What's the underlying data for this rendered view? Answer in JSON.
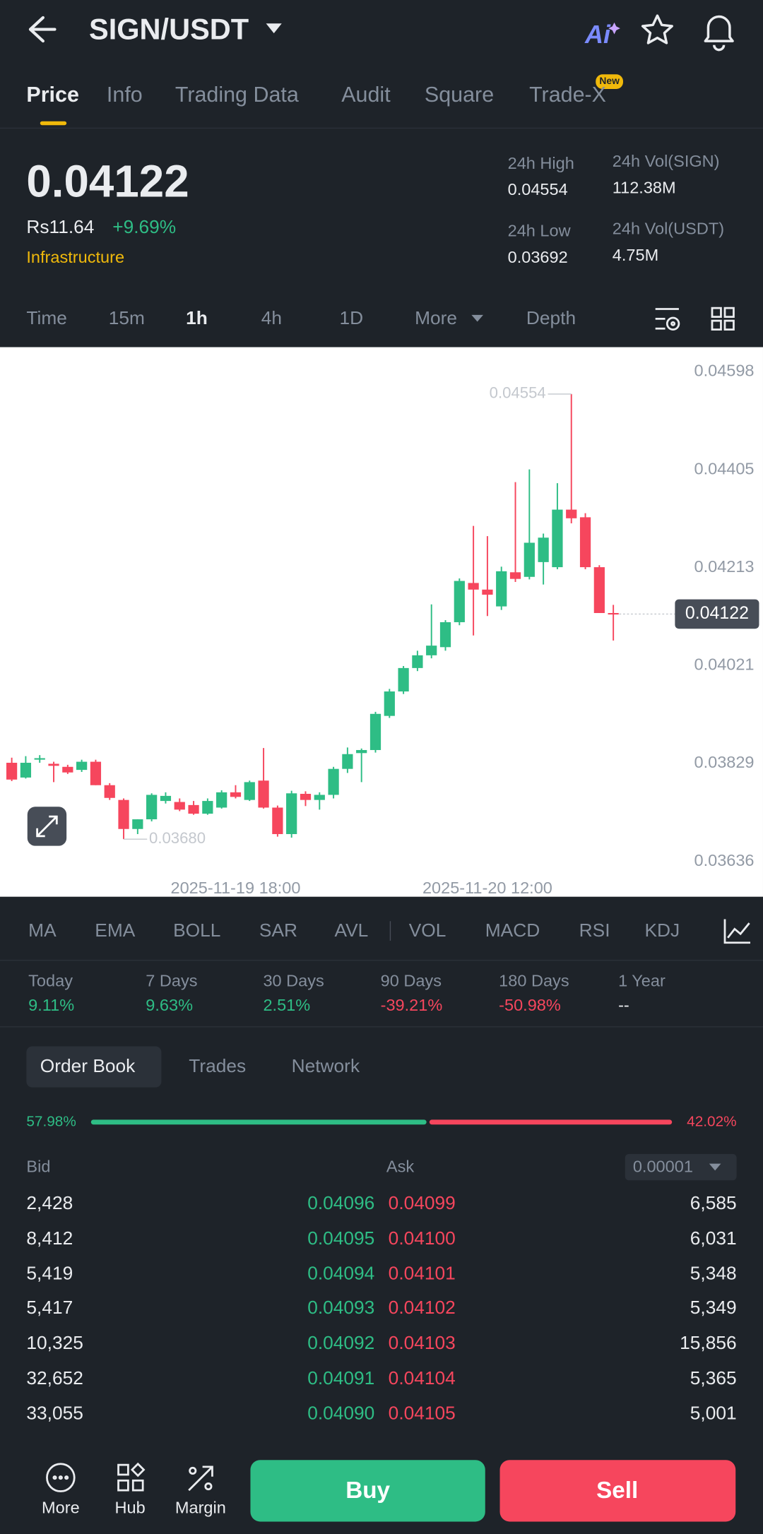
{
  "header": {
    "pair": "SIGN/USDT",
    "ai_label": "Ai"
  },
  "tabs": [
    "Price",
    "Info",
    "Trading Data",
    "Audit",
    "Square",
    "Trade-X"
  ],
  "new_badge": "New",
  "price": {
    "last": "0.04122",
    "fiat": "Rs11.64",
    "change": "+9.69%",
    "sector": "Infrastructure"
  },
  "stats": [
    {
      "label": "24h High",
      "value": "0.04554"
    },
    {
      "label": "24h Vol(SIGN)",
      "value": "112.38M"
    },
    {
      "label": "24h Low",
      "value": "0.03692"
    },
    {
      "label": "24h Vol(USDT)",
      "value": "4.75M"
    }
  ],
  "intervals": [
    "Time",
    "15m",
    "1h",
    "4h",
    "1D",
    "More",
    "Depth"
  ],
  "chart_data": {
    "type": "candlestick",
    "categories": [
      null,
      null,
      null,
      null,
      null,
      null,
      null,
      null,
      null,
      null,
      null,
      null,
      null,
      null,
      null,
      null,
      "2025-11-19 18:00",
      null,
      null,
      null,
      null,
      null,
      null,
      null,
      null,
      null,
      null,
      null,
      null,
      null,
      null,
      null,
      null,
      null,
      "2025-11-20 12:00",
      null,
      null,
      null,
      null,
      null,
      null,
      null,
      null,
      null
    ],
    "open": [
      0.0383,
      0.03801,
      0.03838,
      0.03828,
      0.03822,
      0.03816,
      0.03832,
      0.03786,
      0.03757,
      0.037,
      0.03719,
      0.03755,
      0.03753,
      0.03747,
      0.0373,
      0.03742,
      0.03772,
      0.03757,
      0.03795,
      0.03742,
      0.0369,
      0.03769,
      0.03757,
      0.03767,
      0.03818,
      0.03849,
      0.03855,
      0.03922,
      0.0397,
      0.04016,
      0.04041,
      0.04057,
      0.04106,
      0.04183,
      0.0417,
      0.04137,
      0.04204,
      0.04195,
      0.04224,
      0.04214,
      0.04327,
      0.04312,
      0.04214,
      0.04124
    ],
    "high": [
      0.0384,
      0.03843,
      0.03845,
      0.03832,
      0.03826,
      0.03836,
      0.03836,
      0.0379,
      0.0376,
      0.03719,
      0.0377,
      0.03772,
      0.0376,
      0.03755,
      0.0376,
      0.03776,
      0.03786,
      0.03795,
      0.03859,
      0.03746,
      0.03775,
      0.03774,
      0.03772,
      0.03822,
      0.0386,
      0.03858,
      0.0393,
      0.03975,
      0.0402,
      0.0405,
      0.04141,
      0.0411,
      0.04192,
      0.04295,
      0.04275,
      0.04215,
      0.04381,
      0.04406,
      0.0428,
      0.04379,
      0.04554,
      0.0432,
      0.04218,
      0.0414
    ],
    "low": [
      0.03794,
      0.03799,
      0.0383,
      0.03792,
      0.03808,
      0.03812,
      0.03786,
      0.03757,
      0.0368,
      0.0369,
      0.03715,
      0.0375,
      0.03735,
      0.03728,
      0.03728,
      0.0374,
      0.0376,
      0.03755,
      0.0374,
      0.03685,
      0.03683,
      0.03745,
      0.03738,
      0.0376,
      0.0381,
      0.03792,
      0.0385,
      0.03918,
      0.03965,
      0.0401,
      0.04035,
      0.0405,
      0.041,
      0.0408,
      0.04118,
      0.0413,
      0.04185,
      0.0419,
      0.0418,
      0.0421,
      0.043,
      0.0421,
      0.04124,
      0.0407
    ],
    "close": [
      0.03797,
      0.0383,
      0.03839,
      0.03824,
      0.03811,
      0.03832,
      0.03786,
      0.03761,
      0.037,
      0.03719,
      0.03767,
      0.03765,
      0.03738,
      0.0373,
      0.03755,
      0.03772,
      0.03763,
      0.03792,
      0.03742,
      0.0369,
      0.0377,
      0.03757,
      0.03767,
      0.03818,
      0.03847,
      0.03855,
      0.03926,
      0.0397,
      0.04016,
      0.04041,
      0.0406,
      0.04106,
      0.04187,
      0.0417,
      0.0416,
      0.04206,
      0.04191,
      0.04262,
      0.04272,
      0.04327,
      0.0431,
      0.04214,
      0.04124,
      0.04122
    ],
    "up_color": "#2ebd85",
    "down_color": "#f6465d",
    "ylim": [
      0.03567,
      0.04646
    ],
    "yticks": [
      0.04598,
      0.04405,
      0.04213,
      0.04021,
      0.03829,
      0.03636
    ],
    "high_label": {
      "value": 0.04554,
      "label": "0.04554"
    },
    "low_label": {
      "value": 0.0368,
      "label": "0.03680"
    },
    "last_price": {
      "value": 0.04122,
      "label": "0.04122"
    }
  },
  "indicators": [
    "MA",
    "EMA",
    "BOLL",
    "SAR",
    "AVL",
    "VOL",
    "MACD",
    "RSI",
    "KDJ"
  ],
  "performance": [
    {
      "label": "Today",
      "value": "9.11%"
    },
    {
      "label": "7 Days",
      "value": "9.63%"
    },
    {
      "label": "30 Days",
      "value": "2.51%"
    },
    {
      "label": "90 Days",
      "value": "-39.21%"
    },
    {
      "label": "180 Days",
      "value": "-50.98%"
    },
    {
      "label": "1 Year",
      "value": "--"
    }
  ],
  "order_book": {
    "tabs": [
      "Order Book",
      "Trades",
      "Network"
    ],
    "bid_share": {
      "value": 57.98,
      "label": "57.98%"
    },
    "ask_share": {
      "value": 42.02,
      "label": "42.02%"
    },
    "bid_header": "Bid",
    "ask_header": "Ask",
    "precision": "0.00001",
    "rows": [
      [
        "2,428",
        "0.04096",
        "0.04099",
        "6,585"
      ],
      [
        "8,412",
        "0.04095",
        "0.04100",
        "6,031"
      ],
      [
        "5,419",
        "0.04094",
        "0.04101",
        "5,348"
      ],
      [
        "5,417",
        "0.04093",
        "0.04102",
        "5,349"
      ],
      [
        "10,325",
        "0.04092",
        "0.04103",
        "15,856"
      ],
      [
        "32,652",
        "0.04091",
        "0.04104",
        "5,365"
      ],
      [
        "33,055",
        "0.04090",
        "0.04105",
        "5,001"
      ]
    ]
  },
  "bottom": {
    "items": [
      "More",
      "Hub",
      "Margin"
    ],
    "buy": "Buy",
    "sell": "Sell"
  }
}
